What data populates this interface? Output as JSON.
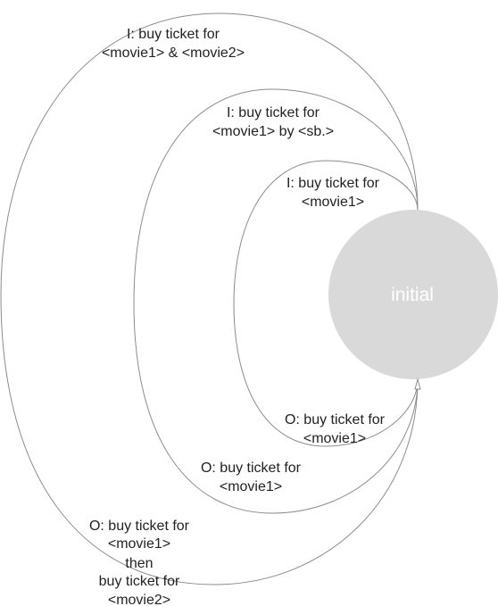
{
  "state": {
    "name": "initial"
  },
  "edges": {
    "input_movie1": {
      "line1": "I: buy ticket for",
      "line2": "<movie1>"
    },
    "input_movie1_by_sb": {
      "line1": "I: buy  ticket for",
      "line2": "<movie1> by <sb.>"
    },
    "input_movie1_and_movie2": {
      "line1": "I: buy ticket for",
      "line2": "<movie1> & <movie2>"
    },
    "output_movie1_inner": {
      "line1": "O: buy ticket for",
      "line2": "<movie1>"
    },
    "output_movie1_middle": {
      "line1": "O: buy ticket for",
      "line2": "<movie1>"
    },
    "output_movie1_then_movie2": {
      "line1": "O: buy ticket for",
      "line2": "<movie1>",
      "line3": "then",
      "line4": "buy ticket for",
      "line5": "<movie2>"
    }
  }
}
